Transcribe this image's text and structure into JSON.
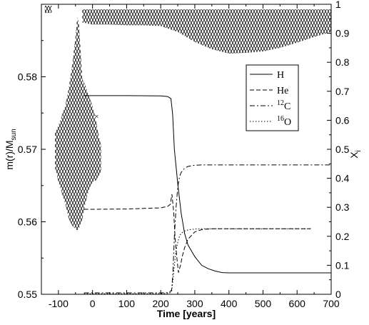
{
  "chart_data": {
    "type": "line",
    "xlabel": "Time [years]",
    "ylabel_left": "m(r)/M",
    "ylabel_left_sub": "sun",
    "ylabel_right": "X",
    "ylabel_right_sub": "i",
    "xlim": [
      -150,
      700
    ],
    "ylim_left": [
      0.55,
      0.59
    ],
    "ylim_right": [
      0,
      1
    ],
    "xticks": [
      -100,
      0,
      100,
      200,
      300,
      400,
      500,
      600,
      700
    ],
    "xtick_labels": [
      "-100",
      "0",
      "100",
      "200",
      "300",
      "400",
      "500",
      "600",
      "700"
    ],
    "yticks_left": [
      0.55,
      0.56,
      0.57,
      0.58
    ],
    "ytick_labels_left": [
      "0.55",
      "0.56",
      "0.57",
      "0.58"
    ],
    "yticks_right": [
      0,
      0.1,
      0.2,
      0.3,
      0.4,
      0.5,
      0.6,
      0.7,
      0.8,
      0.9,
      1
    ],
    "ytick_labels_right": [
      "0",
      "0.1",
      "0.2",
      "0.3",
      "0.4",
      "0.5",
      "0.6",
      "0.7",
      "0.8",
      "0.9",
      "1"
    ],
    "legend_position": "upper right",
    "series": [
      {
        "name": "H",
        "sup": "",
        "dash": "solid",
        "axis": "right",
        "x": [
          -25,
          0,
          100,
          200,
          220,
          230,
          235,
          240,
          250,
          260,
          270,
          280,
          300,
          320,
          340,
          360,
          380,
          400,
          500,
          600,
          700
        ],
        "y": [
          0.685,
          0.685,
          0.685,
          0.684,
          0.682,
          0.675,
          0.62,
          0.5,
          0.38,
          0.28,
          0.21,
          0.17,
          0.13,
          0.1,
          0.088,
          0.08,
          0.075,
          0.074,
          0.074,
          0.074,
          0.074
        ]
      },
      {
        "name": "He",
        "sup": "",
        "dash": "dashed",
        "axis": "right",
        "x": [
          -25,
          0,
          100,
          200,
          220,
          228,
          233,
          238,
          242,
          247,
          252,
          258,
          263,
          270,
          280,
          300,
          320,
          340,
          360,
          380,
          400,
          450,
          500,
          600,
          640
        ],
        "y": [
          0.293,
          0.293,
          0.294,
          0.298,
          0.303,
          0.31,
          0.345,
          0.285,
          0.2,
          0.13,
          0.075,
          0.1,
          0.13,
          0.16,
          0.19,
          0.215,
          0.223,
          0.225,
          0.226,
          0.226,
          0.226,
          0.226,
          0.226,
          0.226,
          0.226
        ]
      },
      {
        "name": "C",
        "sup": "12",
        "dash": "dashdot",
        "axis": "right",
        "x": [
          -25,
          0,
          100,
          200,
          225,
          232,
          236,
          240,
          245,
          250,
          255,
          260,
          270,
          280,
          300,
          320,
          350,
          400,
          500,
          600,
          700
        ],
        "y": [
          0.005,
          0.005,
          0.005,
          0.005,
          0.006,
          0.015,
          0.08,
          0.2,
          0.3,
          0.37,
          0.405,
          0.42,
          0.435,
          0.441,
          0.445,
          0.446,
          0.446,
          0.446,
          0.446,
          0.446,
          0.446
        ]
      },
      {
        "name": "O",
        "sup": "16",
        "dash": "dotted",
        "axis": "right",
        "x": [
          -25,
          0,
          100,
          200,
          225,
          232,
          236,
          240,
          245,
          250,
          255,
          260,
          270,
          280,
          300,
          320,
          350,
          400,
          500,
          600,
          640
        ],
        "y": [
          0.002,
          0.002,
          0.002,
          0.002,
          0.003,
          0.01,
          0.05,
          0.1,
          0.15,
          0.18,
          0.2,
          0.21,
          0.218,
          0.222,
          0.225,
          0.226,
          0.226,
          0.226,
          0.226,
          0.226,
          0.226
        ]
      }
    ],
    "regions": [
      {
        "name": "hatched-region-left",
        "axis": "left",
        "x": [
          -110,
          -100,
          -90,
          -80,
          -70,
          -60,
          -50,
          -45,
          -40,
          -30,
          -20,
          -10,
          0,
          10,
          20,
          25
        ],
        "y_low": [
          0.5675,
          0.5655,
          0.564,
          0.5625,
          0.5605,
          0.5595,
          0.559,
          0.5588,
          0.559,
          0.5603,
          0.5628,
          0.5645,
          0.5655,
          0.5657,
          0.5665,
          0.567
        ],
        "y_high": [
          0.5723,
          0.5733,
          0.5746,
          0.576,
          0.5783,
          0.5815,
          0.5855,
          0.5882,
          0.5875,
          0.5797,
          0.5787,
          0.5772,
          0.576,
          0.574,
          0.5715,
          0.5705
        ]
      },
      {
        "name": "hatched-region-top",
        "axis": "left",
        "x": [
          -30,
          0,
          50,
          100,
          150,
          200,
          250,
          300,
          350,
          400,
          450,
          500,
          550,
          600,
          650,
          700
        ],
        "y_low": [
          0.5875,
          0.5872,
          0.5872,
          0.5871,
          0.5871,
          0.587,
          0.5862,
          0.5848,
          0.5838,
          0.5832,
          0.5833,
          0.5835,
          0.584,
          0.5847,
          0.5855,
          0.5862
        ],
        "y_high": [
          0.5893,
          0.5893,
          0.5893,
          0.5893,
          0.5893,
          0.5893,
          0.5893,
          0.5893,
          0.5893,
          0.5893,
          0.5893,
          0.5893,
          0.5893,
          0.5893,
          0.5893,
          0.5893
        ]
      },
      {
        "name": "hatched-region-top-left",
        "axis": "left",
        "x": [
          -140,
          -120
        ],
        "y_low": [
          0.5888,
          0.5888
        ],
        "y_high": [
          0.5898,
          0.5898
        ]
      }
    ],
    "markers": [
      {
        "name": "x-marker",
        "x": 12,
        "y": 0.5746,
        "axis": "left",
        "symbol": "×"
      }
    ]
  }
}
